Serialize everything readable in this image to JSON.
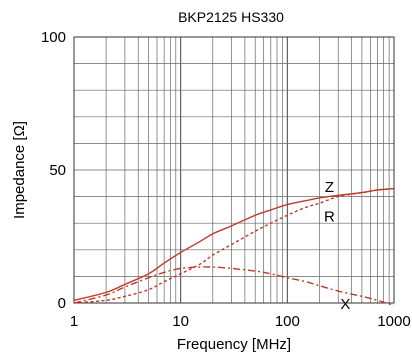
{
  "chart_data": {
    "type": "line",
    "title": "BKP2125  HS330",
    "xlabel": "Frequency  [MHz]",
    "ylabel": "Impedance  [Ω]",
    "x_scale": "log",
    "xlim": [
      1,
      1000
    ],
    "ylim": [
      0,
      100
    ],
    "x_ticks": [
      "1",
      "10",
      "100",
      "1000"
    ],
    "y_ticks": [
      "0",
      "50",
      "100"
    ],
    "grid": true,
    "series_color": "#c0392b",
    "series": [
      {
        "name": "Z",
        "style": "solid",
        "x": [
          1,
          2,
          3,
          5,
          7,
          10,
          15,
          20,
          30,
          50,
          70,
          100,
          150,
          200,
          300,
          500,
          700,
          1000
        ],
        "y": [
          1,
          4,
          7,
          11,
          15,
          19,
          23,
          26,
          29,
          33,
          35,
          37,
          38.5,
          39.5,
          40.5,
          41.5,
          42.5,
          43
        ]
      },
      {
        "name": "R",
        "style": "dashed",
        "x": [
          1,
          2,
          3,
          5,
          7,
          10,
          15,
          20,
          30,
          50,
          70,
          100,
          150,
          200,
          300,
          500,
          700,
          1000
        ],
        "y": [
          0,
          1,
          2.5,
          5,
          8,
          11,
          14.5,
          18,
          22,
          27,
          30,
          33,
          36,
          37.5,
          40,
          41.5,
          42.5,
          43
        ]
      },
      {
        "name": "X",
        "style": "dash-dot",
        "x": [
          1,
          2,
          3,
          5,
          7,
          10,
          15,
          20,
          30,
          50,
          70,
          100,
          150,
          200,
          300,
          500,
          700,
          1000
        ],
        "y": [
          0,
          3,
          6,
          9.5,
          11.5,
          13,
          13.5,
          13.5,
          13,
          12,
          11,
          9.5,
          8,
          6.5,
          4.5,
          2.5,
          1,
          -1
        ]
      }
    ],
    "labels": [
      {
        "text": "Z",
        "series": "Z",
        "x": 200,
        "y": 39.5,
        "dx": 10,
        "dy": -6
      },
      {
        "text": "R",
        "series": "R",
        "x": 200,
        "y": 37.5,
        "dx": 10,
        "dy": 18
      },
      {
        "text": "X",
        "series": "X",
        "x": 350,
        "y": 3.8,
        "dx": 0,
        "dy": 16
      }
    ]
  }
}
